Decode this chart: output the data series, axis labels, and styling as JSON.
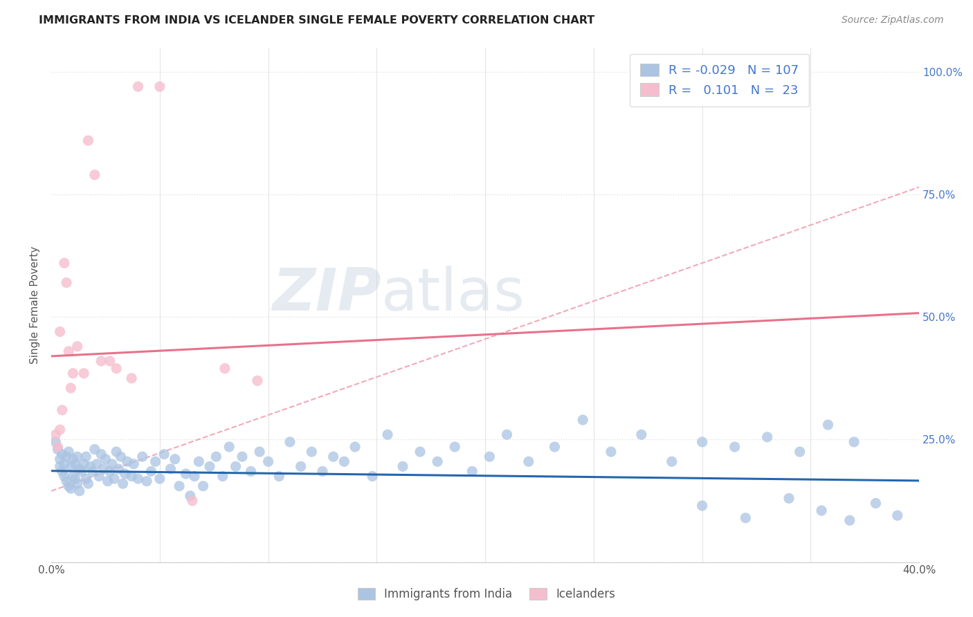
{
  "title": "IMMIGRANTS FROM INDIA VS ICELANDER SINGLE FEMALE POVERTY CORRELATION CHART",
  "source": "Source: ZipAtlas.com",
  "ylabel": "Single Female Poverty",
  "legend_r_india": "-0.029",
  "legend_n_india": "107",
  "legend_r_iceland": "0.101",
  "legend_n_iceland": "23",
  "india_color": "#aac4e2",
  "iceland_color": "#f5bece",
  "india_line_color": "#2565ae",
  "iceland_line_color": "#e8718a",
  "watermark_color": "#d0dce8",
  "bg_color": "#ffffff",
  "grid_color": "#dddddd",
  "right_axis_color": "#4477cc",
  "india_scatter_x": [
    0.002,
    0.003,
    0.004,
    0.004,
    0.005,
    0.005,
    0.006,
    0.006,
    0.007,
    0.007,
    0.008,
    0.008,
    0.009,
    0.009,
    0.01,
    0.01,
    0.011,
    0.011,
    0.012,
    0.012,
    0.013,
    0.013,
    0.014,
    0.015,
    0.016,
    0.016,
    0.017,
    0.018,
    0.019,
    0.02,
    0.021,
    0.022,
    0.023,
    0.024,
    0.025,
    0.026,
    0.027,
    0.028,
    0.029,
    0.03,
    0.031,
    0.032,
    0.033,
    0.034,
    0.035,
    0.037,
    0.038,
    0.04,
    0.042,
    0.044,
    0.046,
    0.048,
    0.05,
    0.052,
    0.055,
    0.057,
    0.059,
    0.062,
    0.064,
    0.066,
    0.068,
    0.07,
    0.073,
    0.076,
    0.079,
    0.082,
    0.085,
    0.088,
    0.092,
    0.096,
    0.1,
    0.105,
    0.11,
    0.115,
    0.12,
    0.125,
    0.13,
    0.135,
    0.14,
    0.148,
    0.155,
    0.162,
    0.17,
    0.178,
    0.186,
    0.194,
    0.202,
    0.21,
    0.22,
    0.232,
    0.245,
    0.258,
    0.272,
    0.286,
    0.3,
    0.315,
    0.33,
    0.345,
    0.358,
    0.37,
    0.3,
    0.32,
    0.34,
    0.355,
    0.368,
    0.38,
    0.39
  ],
  "india_scatter_y": [
    0.245,
    0.23,
    0.21,
    0.195,
    0.22,
    0.185,
    0.2,
    0.175,
    0.215,
    0.165,
    0.225,
    0.155,
    0.195,
    0.15,
    0.21,
    0.175,
    0.2,
    0.17,
    0.215,
    0.16,
    0.19,
    0.145,
    0.185,
    0.2,
    0.17,
    0.215,
    0.16,
    0.195,
    0.185,
    0.23,
    0.2,
    0.175,
    0.22,
    0.19,
    0.21,
    0.165,
    0.185,
    0.2,
    0.17,
    0.225,
    0.19,
    0.215,
    0.16,
    0.18,
    0.205,
    0.175,
    0.2,
    0.17,
    0.215,
    0.165,
    0.185,
    0.205,
    0.17,
    0.22,
    0.19,
    0.21,
    0.155,
    0.18,
    0.135,
    0.175,
    0.205,
    0.155,
    0.195,
    0.215,
    0.175,
    0.235,
    0.195,
    0.215,
    0.185,
    0.225,
    0.205,
    0.175,
    0.245,
    0.195,
    0.225,
    0.185,
    0.215,
    0.205,
    0.235,
    0.175,
    0.26,
    0.195,
    0.225,
    0.205,
    0.235,
    0.185,
    0.215,
    0.26,
    0.205,
    0.235,
    0.29,
    0.225,
    0.26,
    0.205,
    0.245,
    0.235,
    0.255,
    0.225,
    0.28,
    0.245,
    0.115,
    0.09,
    0.13,
    0.105,
    0.085,
    0.12,
    0.095
  ],
  "iceland_scatter_x": [
    0.002,
    0.003,
    0.004,
    0.004,
    0.005,
    0.006,
    0.007,
    0.008,
    0.009,
    0.01,
    0.012,
    0.015,
    0.017,
    0.02,
    0.023,
    0.027,
    0.03,
    0.037,
    0.04,
    0.05,
    0.065,
    0.08,
    0.095
  ],
  "iceland_scatter_y": [
    0.26,
    0.235,
    0.47,
    0.27,
    0.31,
    0.61,
    0.57,
    0.43,
    0.355,
    0.385,
    0.44,
    0.385,
    0.86,
    0.79,
    0.41,
    0.41,
    0.395,
    0.375,
    0.97,
    0.97,
    0.125,
    0.395,
    0.37
  ],
  "xlim": [
    0.0,
    0.4
  ],
  "ylim": [
    0.0,
    1.05
  ],
  "india_trend_intercept": 0.186,
  "india_trend_slope": -0.05,
  "iceland_trend_intercept": 0.42,
  "iceland_trend_slope": 0.22,
  "dash_line_intercept": 0.145,
  "dash_line_slope": 1.55
}
